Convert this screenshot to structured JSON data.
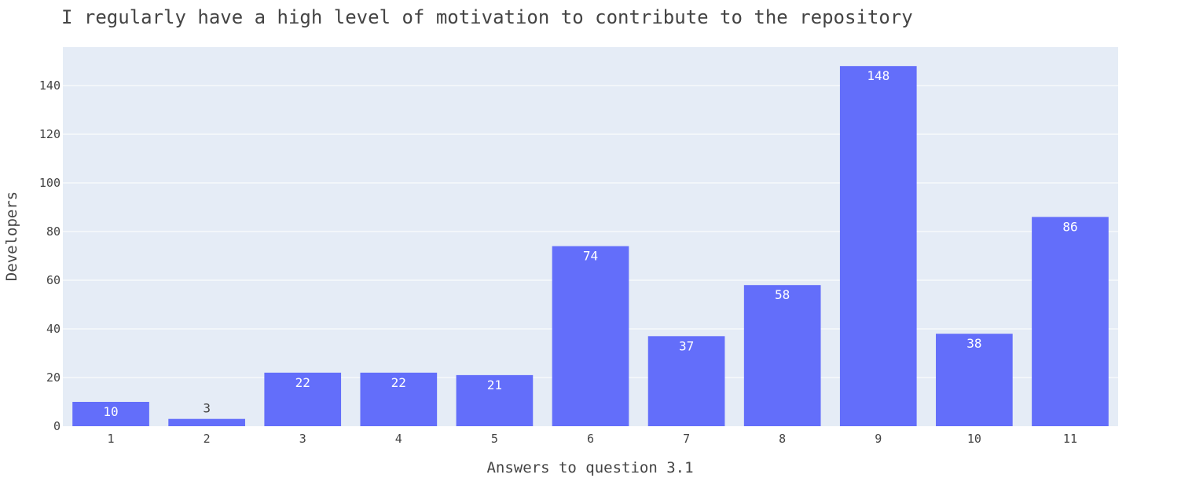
{
  "chart_data": {
    "type": "bar",
    "title": "I regularly have a high level of motivation to contribute to the repository",
    "xlabel": "Answers to question 3.1",
    "ylabel": "Developers",
    "categories": [
      "1",
      "2",
      "3",
      "4",
      "5",
      "6",
      "7",
      "8",
      "9",
      "10",
      "11"
    ],
    "values": [
      10,
      3,
      22,
      22,
      21,
      74,
      37,
      58,
      148,
      38,
      86
    ],
    "data_labels": [
      "10",
      "3",
      "22",
      "22",
      "21",
      "74",
      "37",
      "58",
      "148",
      "38",
      "86"
    ],
    "ylim": [
      0,
      155.8
    ],
    "yticks": [
      0,
      20,
      40,
      60,
      80,
      100,
      120,
      140
    ],
    "grid": true,
    "legend": "none",
    "colors": {
      "bar": "#636efa",
      "plot_background": "#e5ecf6",
      "gridline": "#ffffff",
      "text": "#444444",
      "bar_label_inside": "#ffffff"
    }
  }
}
